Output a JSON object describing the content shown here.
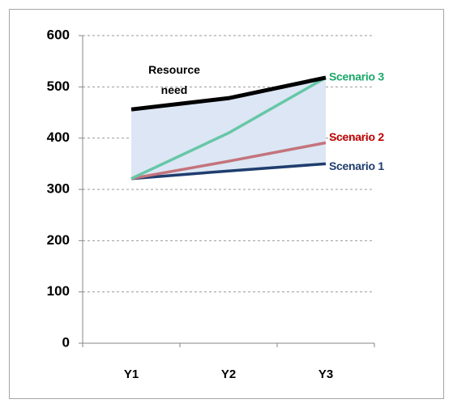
{
  "chart_data": {
    "type": "line",
    "categories": [
      "Y1",
      "Y2",
      "Y3"
    ],
    "series": [
      {
        "name": "Resource need",
        "color": "#000000",
        "label_color": "#000000",
        "values": [
          456,
          478,
          518
        ]
      },
      {
        "name": "Scenario 3",
        "color": "#66c7a6",
        "label_color": "#1aa86a",
        "values": [
          321,
          410,
          518
        ]
      },
      {
        "name": "Scenario 2",
        "color": "#c4737c",
        "label_color": "#c00000",
        "values": [
          321,
          355,
          391
        ]
      },
      {
        "name": "Scenario 1",
        "color": "#1f3d6e",
        "label_color": "#1f3d6e",
        "values": [
          321,
          336,
          350
        ]
      }
    ],
    "area_color": "#dce6f4",
    "ylim": [
      0,
      600
    ],
    "yticks": [
      0,
      100,
      200,
      300,
      400,
      500,
      600
    ],
    "grid": true
  }
}
